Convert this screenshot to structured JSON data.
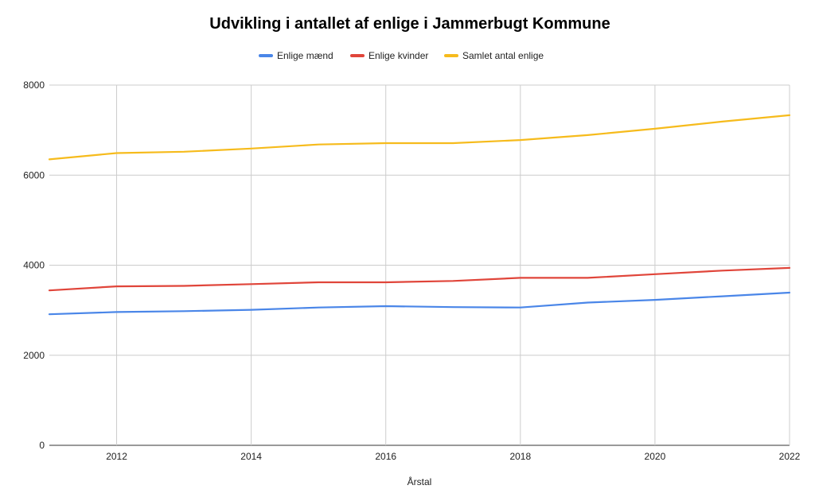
{
  "chart_data": {
    "type": "line",
    "title": "Udvikling i antallet af enlige i Jammerbugt Kommune",
    "xlabel": "Årstal",
    "ylabel": "",
    "x": [
      2011,
      2012,
      2013,
      2014,
      2015,
      2016,
      2017,
      2018,
      2019,
      2020,
      2021,
      2022
    ],
    "xlim": [
      2011,
      2022
    ],
    "ylim": [
      0,
      8000
    ],
    "x_ticks": [
      "2012",
      "2014",
      "2016",
      "2018",
      "2020",
      "2022"
    ],
    "y_ticks": [
      "0",
      "2000",
      "4000",
      "6000",
      "8000"
    ],
    "grid": true,
    "legend_position": "top",
    "series": [
      {
        "name": "Enlige mænd",
        "color": "#4a86e8",
        "values": [
          2910,
          2960,
          2980,
          3010,
          3060,
          3090,
          3070,
          3060,
          3170,
          3230,
          3310,
          3390
        ]
      },
      {
        "name": "Enlige kvinder",
        "color": "#e0453a",
        "values": [
          3440,
          3530,
          3540,
          3580,
          3620,
          3620,
          3650,
          3720,
          3720,
          3800,
          3880,
          3940
        ]
      },
      {
        "name": "Samlet antal enlige",
        "color": "#f6bb1c",
        "values": [
          6350,
          6490,
          6520,
          6590,
          6680,
          6710,
          6710,
          6780,
          6890,
          7030,
          7190,
          7330
        ]
      }
    ]
  }
}
